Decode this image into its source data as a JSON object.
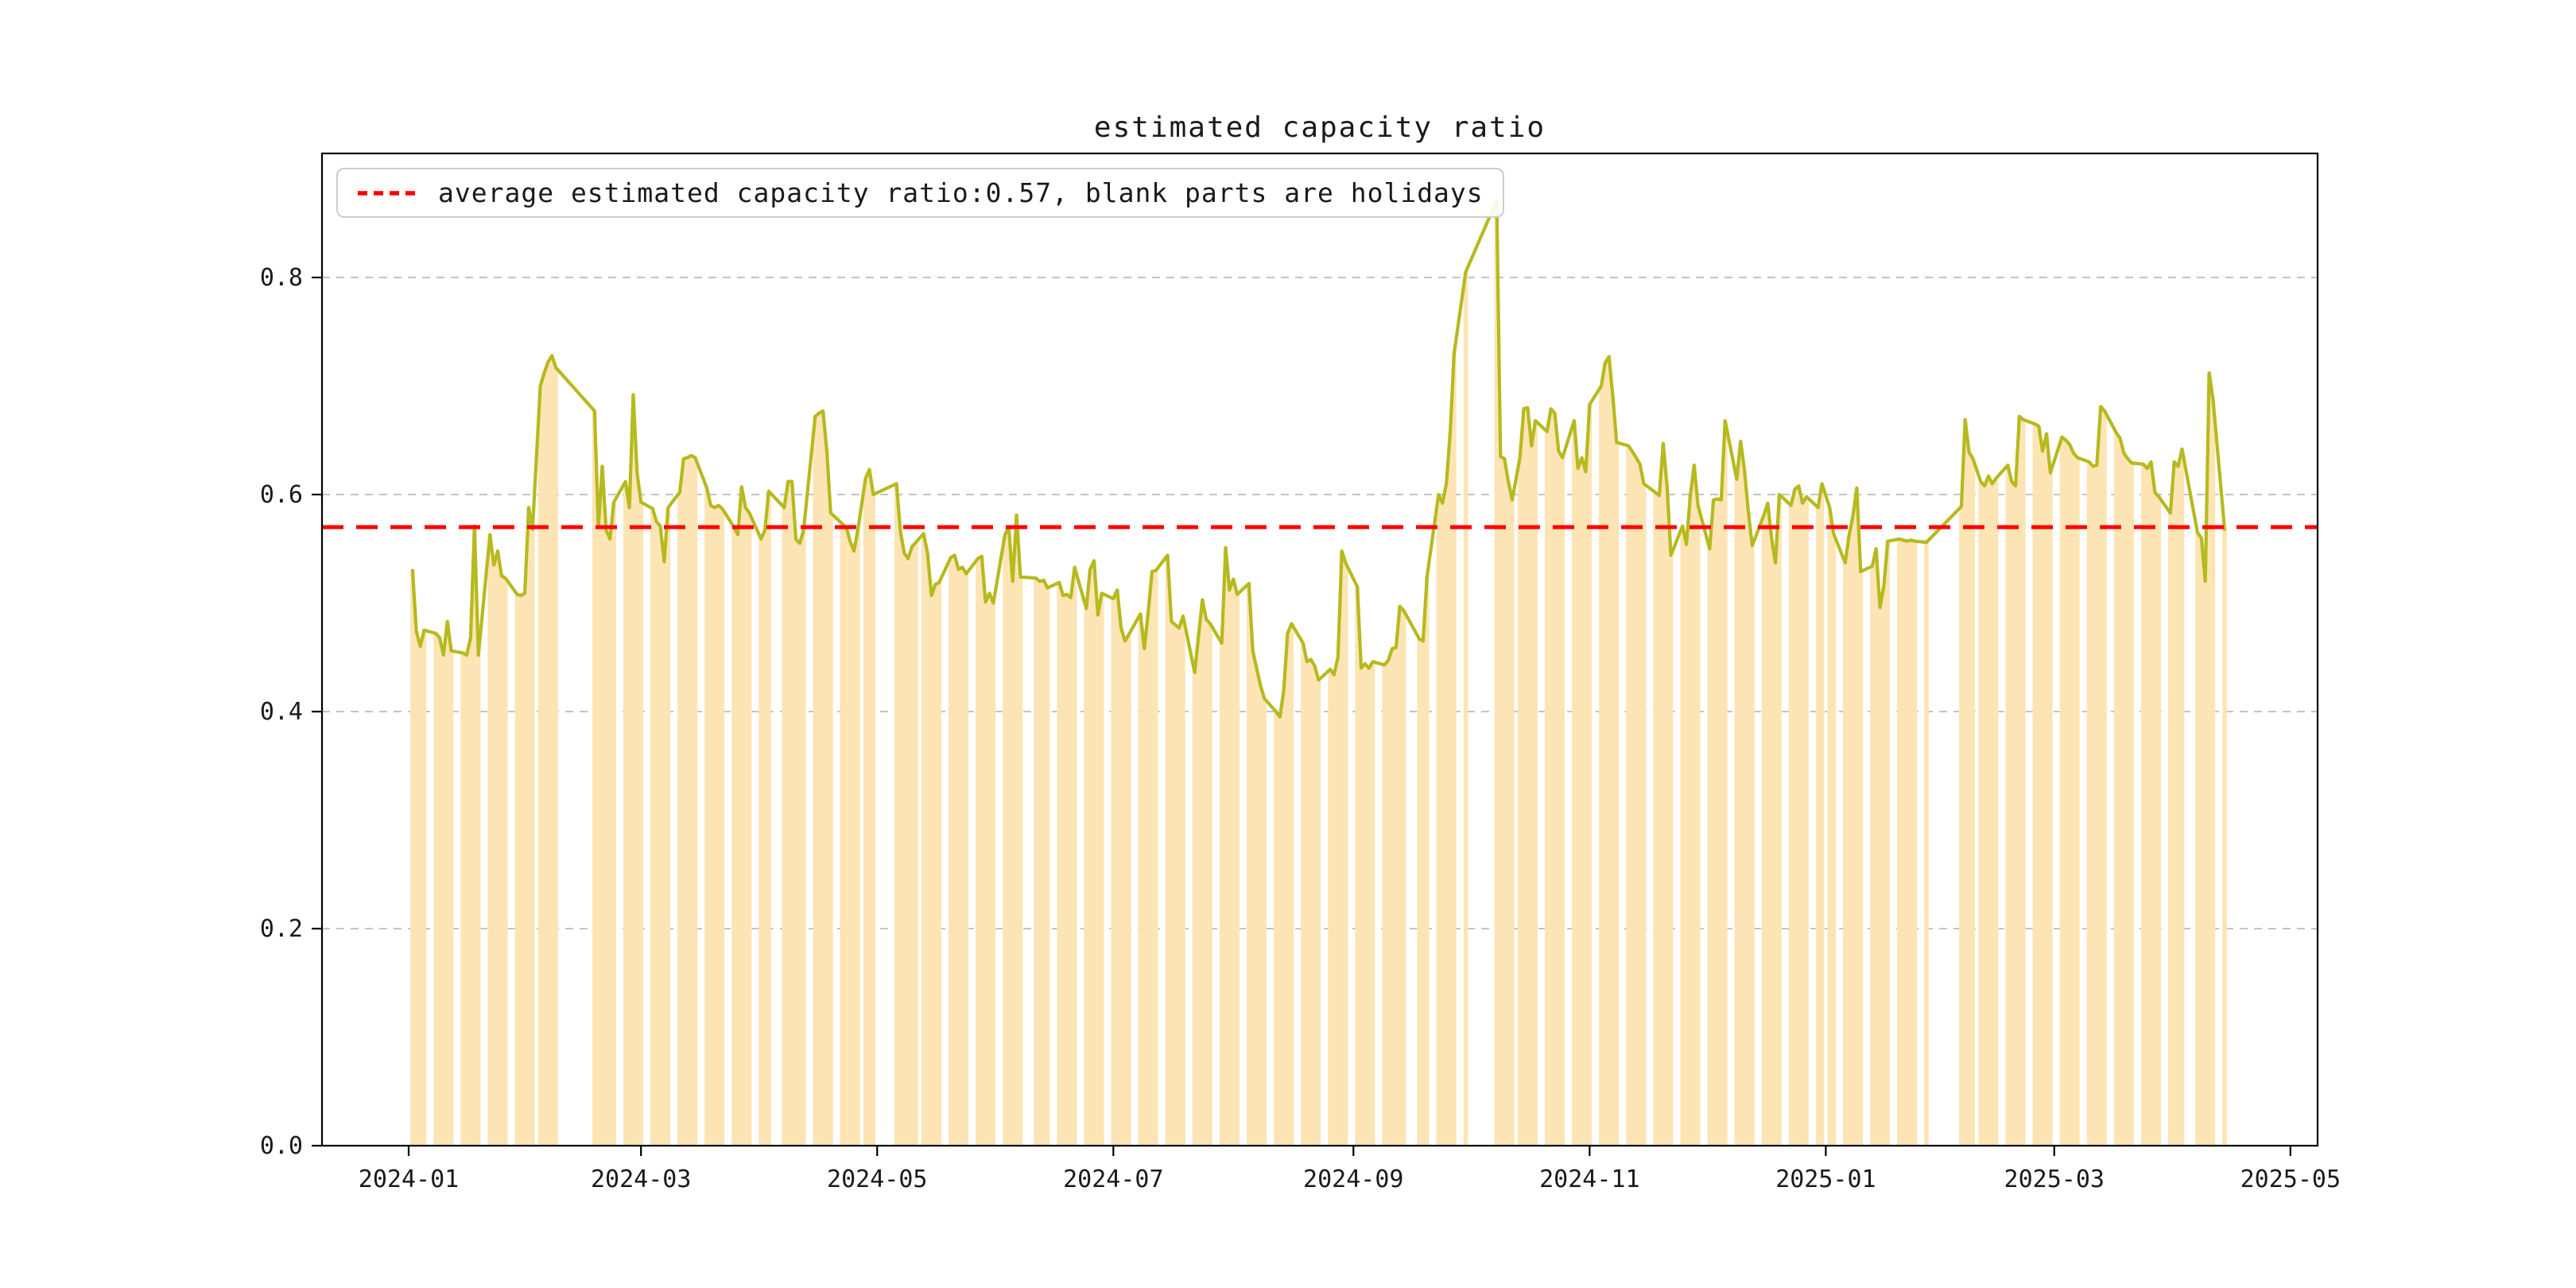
{
  "chart": {
    "title": "estimated capacity ratio",
    "legend_label": "average estimated capacity ratio:0.57, blank parts are holidays",
    "colors": {
      "line": "#b5ba1e",
      "bar": "#fde4b4",
      "average_line": "#ff0000",
      "grid": "#b0b0b0",
      "axis": "#000000",
      "text": "#1a1a1a",
      "legend_border": "#cccccc"
    }
  },
  "chart_data": {
    "type": "line",
    "title": "estimated capacity ratio",
    "series_name": "estimated capacity ratio",
    "average_value": 0.57,
    "legend_note": "blank parts are holidays",
    "y_ticks": [
      0.0,
      0.2,
      0.4,
      0.6,
      0.8
    ],
    "y_tick_labels": [
      "0.0",
      "0.2",
      "0.4",
      "0.6",
      "0.8"
    ],
    "ylim": [
      0.0,
      0.914
    ],
    "x_tick_labels": [
      "2024-01",
      "2024-03",
      "2024-05",
      "2024-07",
      "2024-09",
      "2024-11",
      "2025-01",
      "2025-03",
      "2025-05"
    ],
    "xlim": [
      "2023-12-09",
      "2025-05-03"
    ],
    "grid": "dashed-horizontal",
    "legend_position": "upper-left",
    "bars_note": "bars drawn for each workday at same value as line; gaps (weekends/holidays) have no bars; line interpolates straight across gaps",
    "points": [
      [
        "2024-01-02",
        0.53
      ],
      [
        "2024-01-03",
        0.474
      ],
      [
        "2024-01-04",
        0.46
      ],
      [
        "2024-01-05",
        0.475
      ],
      [
        "2024-01-08",
        0.472
      ],
      [
        "2024-01-09",
        0.468
      ],
      [
        "2024-01-10",
        0.452
      ],
      [
        "2024-01-11",
        0.483
      ],
      [
        "2024-01-12",
        0.456
      ],
      [
        "2024-01-15",
        0.454
      ],
      [
        "2024-01-16",
        0.452
      ],
      [
        "2024-01-17",
        0.468
      ],
      [
        "2024-01-18",
        0.571
      ],
      [
        "2024-01-19",
        0.452
      ],
      [
        "2024-01-22",
        0.563
      ],
      [
        "2024-01-23",
        0.535
      ],
      [
        "2024-01-24",
        0.548
      ],
      [
        "2024-01-25",
        0.525
      ],
      [
        "2024-01-26",
        0.523
      ],
      [
        "2024-01-29",
        0.508
      ],
      [
        "2024-01-30",
        0.507
      ],
      [
        "2024-01-31",
        0.509
      ],
      [
        "2024-02-01",
        0.588
      ],
      [
        "2024-02-02",
        0.568
      ],
      [
        "2024-02-04",
        0.7
      ],
      [
        "2024-02-05",
        0.712
      ],
      [
        "2024-02-06",
        0.722
      ],
      [
        "2024-02-07",
        0.728
      ],
      [
        "2024-02-08",
        0.717
      ],
      [
        "2024-02-18",
        0.677
      ],
      [
        "2024-02-19",
        0.57
      ],
      [
        "2024-02-20",
        0.626
      ],
      [
        "2024-02-21",
        0.567
      ],
      [
        "2024-02-22",
        0.559
      ],
      [
        "2024-02-23",
        0.593
      ],
      [
        "2024-02-26",
        0.612
      ],
      [
        "2024-02-27",
        0.588
      ],
      [
        "2024-02-28",
        0.692
      ],
      [
        "2024-02-29",
        0.62
      ],
      [
        "2024-03-01",
        0.593
      ],
      [
        "2024-03-04",
        0.587
      ],
      [
        "2024-03-05",
        0.575
      ],
      [
        "2024-03-06",
        0.571
      ],
      [
        "2024-03-07",
        0.538
      ],
      [
        "2024-03-08",
        0.588
      ],
      [
        "2024-03-11",
        0.602
      ],
      [
        "2024-03-12",
        0.633
      ],
      [
        "2024-03-13",
        0.634
      ],
      [
        "2024-03-14",
        0.636
      ],
      [
        "2024-03-15",
        0.634
      ],
      [
        "2024-03-18",
        0.606
      ],
      [
        "2024-03-19",
        0.59
      ],
      [
        "2024-03-20",
        0.588
      ],
      [
        "2024-03-21",
        0.59
      ],
      [
        "2024-03-22",
        0.587
      ],
      [
        "2024-03-25",
        0.57
      ],
      [
        "2024-03-26",
        0.563
      ],
      [
        "2024-03-27",
        0.607
      ],
      [
        "2024-03-28",
        0.588
      ],
      [
        "2024-03-29",
        0.583
      ],
      [
        "2024-04-01",
        0.559
      ],
      [
        "2024-04-02",
        0.567
      ],
      [
        "2024-04-03",
        0.603
      ],
      [
        "2024-04-07",
        0.588
      ],
      [
        "2024-04-08",
        0.612
      ],
      [
        "2024-04-09",
        0.612
      ],
      [
        "2024-04-10",
        0.559
      ],
      [
        "2024-04-11",
        0.555
      ],
      [
        "2024-04-12",
        0.567
      ],
      [
        "2024-04-15",
        0.672
      ],
      [
        "2024-04-16",
        0.675
      ],
      [
        "2024-04-17",
        0.677
      ],
      [
        "2024-04-18",
        0.64
      ],
      [
        "2024-04-19",
        0.583
      ],
      [
        "2024-04-22",
        0.573
      ],
      [
        "2024-04-23",
        0.57
      ],
      [
        "2024-04-24",
        0.557
      ],
      [
        "2024-04-25",
        0.548
      ],
      [
        "2024-04-26",
        0.567
      ],
      [
        "2024-04-28",
        0.615
      ],
      [
        "2024-04-29",
        0.623
      ],
      [
        "2024-04-30",
        0.6
      ],
      [
        "2024-05-06",
        0.61
      ],
      [
        "2024-05-07",
        0.566
      ],
      [
        "2024-05-08",
        0.546
      ],
      [
        "2024-05-09",
        0.541
      ],
      [
        "2024-05-10",
        0.552
      ],
      [
        "2024-05-11",
        0.556
      ],
      [
        "2024-05-13",
        0.564
      ],
      [
        "2024-05-14",
        0.546
      ],
      [
        "2024-05-15",
        0.507
      ],
      [
        "2024-05-16",
        0.517
      ],
      [
        "2024-05-17",
        0.519
      ],
      [
        "2024-05-20",
        0.542
      ],
      [
        "2024-05-21",
        0.544
      ],
      [
        "2024-05-22",
        0.531
      ],
      [
        "2024-05-23",
        0.533
      ],
      [
        "2024-05-24",
        0.527
      ],
      [
        "2024-05-27",
        0.541
      ],
      [
        "2024-05-28",
        0.543
      ],
      [
        "2024-05-29",
        0.501
      ],
      [
        "2024-05-30",
        0.509
      ],
      [
        "2024-05-31",
        0.5
      ],
      [
        "2024-06-03",
        0.563
      ],
      [
        "2024-06-04",
        0.57
      ],
      [
        "2024-06-05",
        0.52
      ],
      [
        "2024-06-06",
        0.581
      ],
      [
        "2024-06-07",
        0.524
      ],
      [
        "2024-06-11",
        0.523
      ],
      [
        "2024-06-12",
        0.52
      ],
      [
        "2024-06-13",
        0.521
      ],
      [
        "2024-06-14",
        0.514
      ],
      [
        "2024-06-17",
        0.519
      ],
      [
        "2024-06-18",
        0.507
      ],
      [
        "2024-06-19",
        0.508
      ],
      [
        "2024-06-20",
        0.505
      ],
      [
        "2024-06-21",
        0.533
      ],
      [
        "2024-06-24",
        0.495
      ],
      [
        "2024-06-25",
        0.531
      ],
      [
        "2024-06-26",
        0.539
      ],
      [
        "2024-06-27",
        0.489
      ],
      [
        "2024-06-28",
        0.509
      ],
      [
        "2024-07-01",
        0.504
      ],
      [
        "2024-07-02",
        0.512
      ],
      [
        "2024-07-03",
        0.477
      ],
      [
        "2024-07-04",
        0.465
      ],
      [
        "2024-07-05",
        0.471
      ],
      [
        "2024-07-08",
        0.49
      ],
      [
        "2024-07-09",
        0.458
      ],
      [
        "2024-07-10",
        0.492
      ],
      [
        "2024-07-11",
        0.529
      ],
      [
        "2024-07-12",
        0.53
      ],
      [
        "2024-07-15",
        0.544
      ],
      [
        "2024-07-16",
        0.483
      ],
      [
        "2024-07-17",
        0.48
      ],
      [
        "2024-07-18",
        0.477
      ],
      [
        "2024-07-19",
        0.488
      ],
      [
        "2024-07-22",
        0.436
      ],
      [
        "2024-07-23",
        0.47
      ],
      [
        "2024-07-24",
        0.503
      ],
      [
        "2024-07-25",
        0.485
      ],
      [
        "2024-07-26",
        0.481
      ],
      [
        "2024-07-29",
        0.463
      ],
      [
        "2024-07-30",
        0.551
      ],
      [
        "2024-07-31",
        0.512
      ],
      [
        "2024-08-01",
        0.522
      ],
      [
        "2024-08-02",
        0.508
      ],
      [
        "2024-08-05",
        0.518
      ],
      [
        "2024-08-06",
        0.456
      ],
      [
        "2024-08-07",
        0.44
      ],
      [
        "2024-08-08",
        0.424
      ],
      [
        "2024-08-09",
        0.412
      ],
      [
        "2024-08-12",
        0.4
      ],
      [
        "2024-08-13",
        0.395
      ],
      [
        "2024-08-14",
        0.419
      ],
      [
        "2024-08-15",
        0.472
      ],
      [
        "2024-08-16",
        0.481
      ],
      [
        "2024-08-19",
        0.463
      ],
      [
        "2024-08-20",
        0.446
      ],
      [
        "2024-08-21",
        0.448
      ],
      [
        "2024-08-22",
        0.442
      ],
      [
        "2024-08-23",
        0.429
      ],
      [
        "2024-08-26",
        0.439
      ],
      [
        "2024-08-27",
        0.434
      ],
      [
        "2024-08-28",
        0.45
      ],
      [
        "2024-08-29",
        0.548
      ],
      [
        "2024-08-30",
        0.537
      ],
      [
        "2024-09-02",
        0.515
      ],
      [
        "2024-09-03",
        0.44
      ],
      [
        "2024-09-04",
        0.444
      ],
      [
        "2024-09-05",
        0.44
      ],
      [
        "2024-09-06",
        0.446
      ],
      [
        "2024-09-09",
        0.443
      ],
      [
        "2024-09-10",
        0.447
      ],
      [
        "2024-09-11",
        0.458
      ],
      [
        "2024-09-12",
        0.459
      ],
      [
        "2024-09-13",
        0.497
      ],
      [
        "2024-09-14",
        0.493
      ],
      [
        "2024-09-18",
        0.467
      ],
      [
        "2024-09-19",
        0.465
      ],
      [
        "2024-09-20",
        0.524
      ],
      [
        "2024-09-23",
        0.6
      ],
      [
        "2024-09-24",
        0.592
      ],
      [
        "2024-09-25",
        0.61
      ],
      [
        "2024-09-26",
        0.657
      ],
      [
        "2024-09-27",
        0.73
      ],
      [
        "2024-09-30",
        0.805
      ],
      [
        "2024-10-08",
        0.871
      ],
      [
        "2024-10-09",
        0.635
      ],
      [
        "2024-10-10",
        0.633
      ],
      [
        "2024-10-11",
        0.612
      ],
      [
        "2024-10-12",
        0.595
      ],
      [
        "2024-10-14",
        0.634
      ],
      [
        "2024-10-15",
        0.679
      ],
      [
        "2024-10-16",
        0.68
      ],
      [
        "2024-10-17",
        0.645
      ],
      [
        "2024-10-18",
        0.668
      ],
      [
        "2024-10-21",
        0.658
      ],
      [
        "2024-10-22",
        0.679
      ],
      [
        "2024-10-23",
        0.675
      ],
      [
        "2024-10-24",
        0.64
      ],
      [
        "2024-10-25",
        0.634
      ],
      [
        "2024-10-28",
        0.668
      ],
      [
        "2024-10-29",
        0.624
      ],
      [
        "2024-10-30",
        0.634
      ],
      [
        "2024-10-31",
        0.621
      ],
      [
        "2024-11-01",
        0.683
      ],
      [
        "2024-11-04",
        0.7
      ],
      [
        "2024-11-05",
        0.721
      ],
      [
        "2024-11-06",
        0.727
      ],
      [
        "2024-11-07",
        0.69
      ],
      [
        "2024-11-08",
        0.648
      ],
      [
        "2024-11-11",
        0.645
      ],
      [
        "2024-11-12",
        0.64
      ],
      [
        "2024-11-13",
        0.634
      ],
      [
        "2024-11-14",
        0.628
      ],
      [
        "2024-11-15",
        0.61
      ],
      [
        "2024-11-18",
        0.602
      ],
      [
        "2024-11-19",
        0.599
      ],
      [
        "2024-11-20",
        0.647
      ],
      [
        "2024-11-21",
        0.607
      ],
      [
        "2024-11-22",
        0.544
      ],
      [
        "2024-11-25",
        0.571
      ],
      [
        "2024-11-26",
        0.554
      ],
      [
        "2024-11-27",
        0.599
      ],
      [
        "2024-11-28",
        0.627
      ],
      [
        "2024-11-29",
        0.59
      ],
      [
        "2024-12-02",
        0.55
      ],
      [
        "2024-12-03",
        0.595
      ],
      [
        "2024-12-04",
        0.596
      ],
      [
        "2024-12-05",
        0.595
      ],
      [
        "2024-12-06",
        0.668
      ],
      [
        "2024-12-09",
        0.614
      ],
      [
        "2024-12-10",
        0.649
      ],
      [
        "2024-12-11",
        0.622
      ],
      [
        "2024-12-12",
        0.584
      ],
      [
        "2024-12-13",
        0.553
      ],
      [
        "2024-12-16",
        0.581
      ],
      [
        "2024-12-17",
        0.592
      ],
      [
        "2024-12-18",
        0.56
      ],
      [
        "2024-12-19",
        0.537
      ],
      [
        "2024-12-20",
        0.6
      ],
      [
        "2024-12-23",
        0.59
      ],
      [
        "2024-12-24",
        0.605
      ],
      [
        "2024-12-25",
        0.608
      ],
      [
        "2024-12-26",
        0.592
      ],
      [
        "2024-12-27",
        0.598
      ],
      [
        "2024-12-30",
        0.588
      ],
      [
        "2024-12-31",
        0.61
      ],
      [
        "2025-01-02",
        0.588
      ],
      [
        "2025-01-03",
        0.564
      ],
      [
        "2025-01-06",
        0.537
      ],
      [
        "2025-01-07",
        0.562
      ],
      [
        "2025-01-08",
        0.58
      ],
      [
        "2025-01-09",
        0.606
      ],
      [
        "2025-01-10",
        0.529
      ],
      [
        "2025-01-13",
        0.534
      ],
      [
        "2025-01-14",
        0.55
      ],
      [
        "2025-01-15",
        0.496
      ],
      [
        "2025-01-16",
        0.516
      ],
      [
        "2025-01-17",
        0.557
      ],
      [
        "2025-01-20",
        0.559
      ],
      [
        "2025-01-21",
        0.558
      ],
      [
        "2025-01-22",
        0.557
      ],
      [
        "2025-01-23",
        0.558
      ],
      [
        "2025-01-24",
        0.557
      ],
      [
        "2025-01-27",
        0.556
      ],
      [
        "2025-02-05",
        0.589
      ],
      [
        "2025-02-06",
        0.669
      ],
      [
        "2025-02-07",
        0.639
      ],
      [
        "2025-02-08",
        0.633
      ],
      [
        "2025-02-10",
        0.612
      ],
      [
        "2025-02-11",
        0.608
      ],
      [
        "2025-02-12",
        0.617
      ],
      [
        "2025-02-13",
        0.61
      ],
      [
        "2025-02-14",
        0.615
      ],
      [
        "2025-02-17",
        0.627
      ],
      [
        "2025-02-18",
        0.612
      ],
      [
        "2025-02-19",
        0.608
      ],
      [
        "2025-02-20",
        0.672
      ],
      [
        "2025-02-21",
        0.669
      ],
      [
        "2025-02-24",
        0.665
      ],
      [
        "2025-02-25",
        0.663
      ],
      [
        "2025-02-26",
        0.64
      ],
      [
        "2025-02-27",
        0.656
      ],
      [
        "2025-02-28",
        0.62
      ],
      [
        "2025-03-03",
        0.653
      ],
      [
        "2025-03-04",
        0.65
      ],
      [
        "2025-03-05",
        0.646
      ],
      [
        "2025-03-06",
        0.638
      ],
      [
        "2025-03-07",
        0.634
      ],
      [
        "2025-03-10",
        0.63
      ],
      [
        "2025-03-11",
        0.626
      ],
      [
        "2025-03-12",
        0.627
      ],
      [
        "2025-03-13",
        0.681
      ],
      [
        "2025-03-14",
        0.677
      ],
      [
        "2025-03-17",
        0.657
      ],
      [
        "2025-03-18",
        0.652
      ],
      [
        "2025-03-19",
        0.638
      ],
      [
        "2025-03-20",
        0.633
      ],
      [
        "2025-03-21",
        0.629
      ],
      [
        "2025-03-24",
        0.628
      ],
      [
        "2025-03-25",
        0.624
      ],
      [
        "2025-03-26",
        0.63
      ],
      [
        "2025-03-27",
        0.602
      ],
      [
        "2025-03-28",
        0.598
      ],
      [
        "2025-03-31",
        0.583
      ],
      [
        "2025-04-01",
        0.63
      ],
      [
        "2025-04-02",
        0.626
      ],
      [
        "2025-04-03",
        0.642
      ],
      [
        "2025-04-07",
        0.565
      ],
      [
        "2025-04-08",
        0.56
      ],
      [
        "2025-04-09",
        0.52
      ],
      [
        "2025-04-10",
        0.712
      ],
      [
        "2025-04-11",
        0.688
      ],
      [
        "2025-04-14",
        0.568
      ]
    ]
  }
}
